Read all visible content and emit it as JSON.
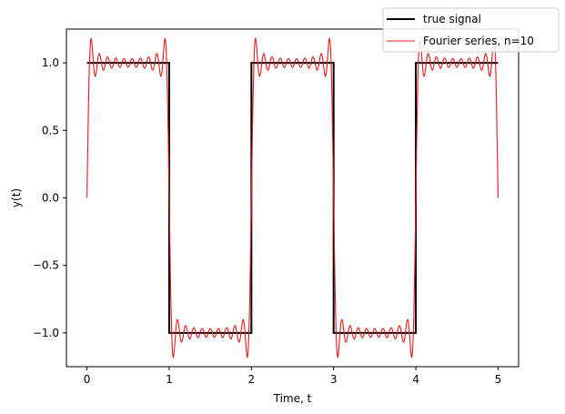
{
  "chart_data": {
    "type": "line",
    "title": "",
    "xlabel": "Time, t",
    "ylabel": "y(t)",
    "xlim": [
      -0.25,
      5.25
    ],
    "ylim": [
      -1.25,
      1.25
    ],
    "xticks": [
      0,
      1,
      2,
      3,
      4,
      5
    ],
    "xtick_labels": [
      "0",
      "1",
      "2",
      "3",
      "4",
      "5"
    ],
    "yticks": [
      -1.0,
      -0.5,
      0.0,
      0.5,
      1.0
    ],
    "ytick_labels": [
      "−1.0",
      "−0.5",
      "0.0",
      "0.5",
      "1.0"
    ],
    "grid": false,
    "legend": {
      "placement": "top-right, outside axes",
      "entries": [
        "true signal",
        "Fourier series, n=10"
      ]
    },
    "series": [
      {
        "name": "true signal",
        "color": "#000000",
        "style": "step",
        "x": [
          0,
          1,
          1,
          2,
          2,
          3,
          3,
          4,
          4,
          5
        ],
        "y": [
          1,
          1,
          -1,
          -1,
          1,
          1,
          -1,
          -1,
          1,
          1
        ]
      },
      {
        "name": "Fourier series, n=10",
        "color": "#e41a1c",
        "style": "line",
        "x_range": [
          0,
          5
        ],
        "period": 2,
        "harmonics": [
          1,
          3,
          5,
          7,
          9,
          11,
          13,
          15,
          17,
          19
        ]
      }
    ]
  }
}
